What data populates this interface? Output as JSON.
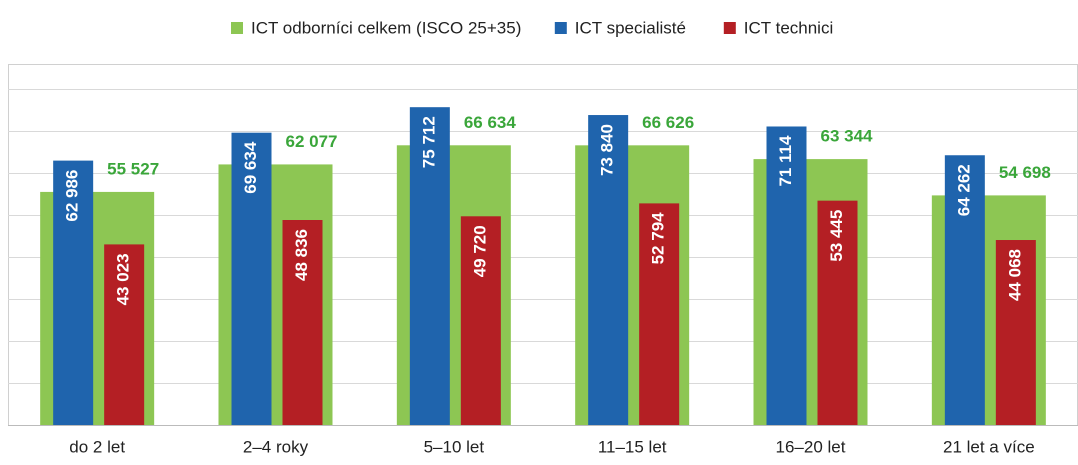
{
  "chart_data": {
    "type": "bar",
    "categories": [
      "do 2 let",
      "2–4 roky",
      "5–10 let",
      "11–15 let",
      "16–20 let",
      "21 let a více"
    ],
    "series": [
      {
        "name": "ICT odborníci celkem (ISCO 25+35)",
        "color": "#8dc653",
        "label_color": "#3aa63a",
        "values": [
          55527,
          62077,
          66634,
          66626,
          63344,
          54698
        ],
        "value_labels": [
          "55 527",
          "62 077",
          "66 634",
          "66 626",
          "63 344",
          "54 698"
        ]
      },
      {
        "name": "ICT specialisté",
        "color": "#1f64ad",
        "label_color": "#ffffff",
        "values": [
          62986,
          69634,
          75712,
          73840,
          71114,
          64262
        ],
        "value_labels": [
          "62 986",
          "69 634",
          "75 712",
          "73 840",
          "71 114",
          "64 262"
        ]
      },
      {
        "name": "ICT technici",
        "color": "#b41f24",
        "label_color": "#ffffff",
        "values": [
          43023,
          48836,
          49720,
          52794,
          53445,
          44068
        ],
        "value_labels": [
          "43 023",
          "48 836",
          "49 720",
          "52 794",
          "53 445",
          "44 068"
        ]
      }
    ],
    "ylim": [
      0,
      86000
    ],
    "yticks": [
      0,
      10000,
      20000,
      30000,
      40000,
      50000,
      60000,
      70000,
      80000
    ],
    "grid": true,
    "legend": "top"
  }
}
